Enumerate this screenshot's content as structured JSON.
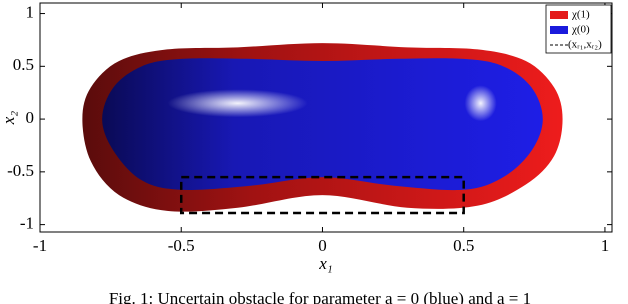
{
  "chart_data": {
    "type": "region",
    "xlabel": "x₁",
    "ylabel": "x₂",
    "xlim": [
      -1,
      1.025
    ],
    "ylim": [
      -1.07,
      1.1
    ],
    "xticks": [
      -1,
      -0.5,
      0,
      0.5,
      1
    ],
    "yticks": [
      -1,
      -0.5,
      0,
      0.5,
      1
    ],
    "series": [
      {
        "name": "χ(1)",
        "color": "#e41a1a",
        "x": [
          -0.85,
          -0.82,
          -0.72,
          -0.55,
          -0.3,
          0,
          0.3,
          0.55,
          0.72,
          0.82,
          0.85,
          0.82,
          0.72,
          0.55,
          0.3,
          0,
          -0.3,
          -0.55,
          -0.72,
          -0.82
        ],
        "y": [
          0,
          0.3,
          0.55,
          0.66,
          0.68,
          0.72,
          0.68,
          0.66,
          0.55,
          0.3,
          0,
          -0.35,
          -0.62,
          -0.82,
          -0.84,
          -0.72,
          -0.84,
          -0.87,
          -0.72,
          -0.4
        ]
      },
      {
        "name": "χ(0)",
        "color": "#1a1adc",
        "x": [
          -0.78,
          -0.74,
          -0.64,
          -0.5,
          -0.25,
          0,
          0.25,
          0.5,
          0.64,
          0.74,
          0.78,
          0.74,
          0.64,
          0.5,
          0.25,
          0,
          -0.25,
          -0.5,
          -0.64,
          -0.74
        ],
        "y": [
          0,
          0.3,
          0.5,
          0.57,
          0.57,
          0.55,
          0.57,
          0.57,
          0.5,
          0.3,
          0,
          -0.3,
          -0.55,
          -0.67,
          -0.63,
          -0.55,
          -0.63,
          -0.67,
          -0.58,
          -0.3
        ]
      }
    ],
    "box": {
      "name": "(xᵣ₁,xᵣ₂)",
      "color": "#000000",
      "x": [
        -0.5,
        0.5
      ],
      "y": [
        -0.89,
        -0.55
      ]
    },
    "caption": "Fig. 1: Uncertain obstacle for parameter a = 0 (blue) and a = 1"
  }
}
